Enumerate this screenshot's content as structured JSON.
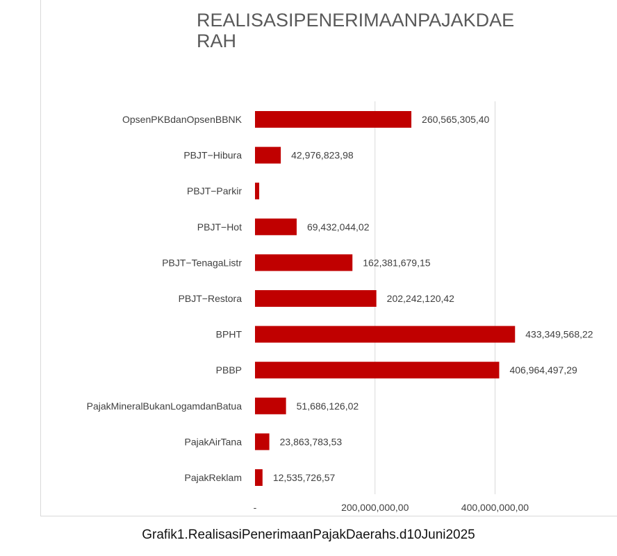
{
  "chart_data": {
    "type": "bar",
    "orientation": "horizontal",
    "title": "REALISASIPENERIMAANPAJAKDAERAH",
    "title_lines": [
      "REALISASIPENERIMAANPAJAKDAE",
      "RAH"
    ],
    "categories": [
      "OpsenPKBdanOpsenBBNK",
      "PBJT−Hibura",
      "PBJT−Parkir",
      "PBJT−Hot",
      "PBJT−TenagaListr",
      "PBJT−Restora",
      "BPHT",
      "PBBP",
      "PajakMineralBukanLogamdanBatua",
      "PajakAirTana",
      "PajakReklam"
    ],
    "values": [
      260565305.4,
      42976823.98,
      7000000,
      69432044.02,
      162381679.15,
      202242120.42,
      433349568.22,
      406964497.29,
      51686126.02,
      23863783.53,
      12535726.57
    ],
    "data_labels": [
      "260,565,305,40",
      "42,976,823,98",
      "",
      "69,432,044,02",
      "162,381,679,15",
      "202,242,120,42",
      "433,349,568,22",
      "406,964,497,29",
      "51,686,126,02",
      "23,863,783,53",
      "12,535,726,57"
    ],
    "x_ticks": [
      {
        "value": 0,
        "label": "-"
      },
      {
        "value": 200000000,
        "label": "200,000,000,00"
      },
      {
        "value": 400000000,
        "label": "400,000,000,00"
      }
    ],
    "xlim": [
      0,
      550000000
    ],
    "bar_color": "#c00000",
    "grid": true
  },
  "caption": "Grafik1.RealisasiPenerimaanPajakDaerahs.d10Juni2025"
}
